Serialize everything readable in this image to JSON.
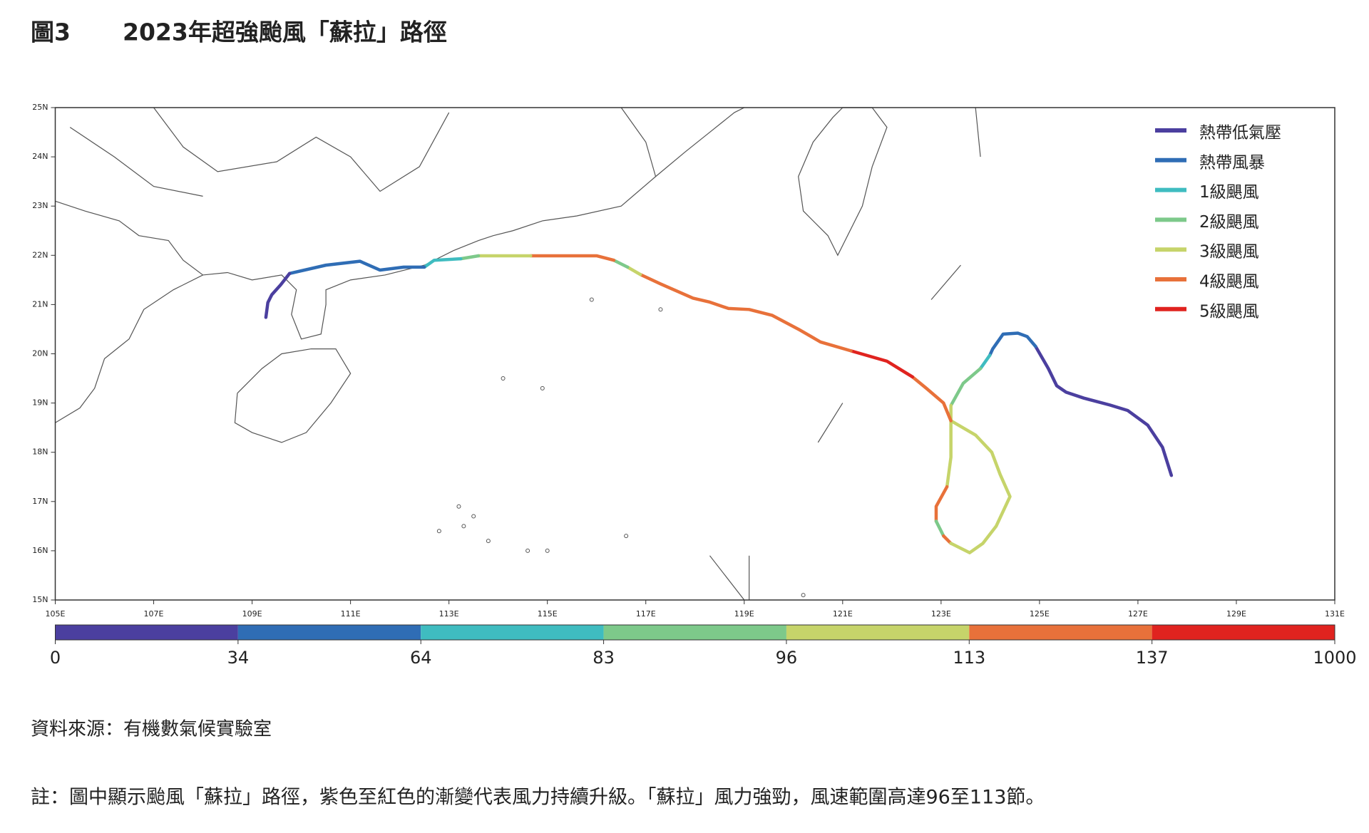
{
  "figure_label": "圖3",
  "title": "2023年超強颱風「蘇拉」路徑",
  "map": {
    "type": "track",
    "xlim": [
      105,
      131
    ],
    "ylim": [
      15,
      25
    ],
    "xticks": [
      {
        "value": 105,
        "label": "105E"
      },
      {
        "value": 107,
        "label": "107E"
      },
      {
        "value": 109,
        "label": "109E"
      },
      {
        "value": 111,
        "label": "111E"
      },
      {
        "value": 113,
        "label": "113E"
      },
      {
        "value": 115,
        "label": "115E"
      },
      {
        "value": 117,
        "label": "117E"
      },
      {
        "value": 119,
        "label": "119E"
      },
      {
        "value": 121,
        "label": "121E"
      },
      {
        "value": 123,
        "label": "123E"
      },
      {
        "value": 125,
        "label": "125E"
      },
      {
        "value": 127,
        "label": "127E"
      },
      {
        "value": 129,
        "label": "129E"
      },
      {
        "value": 131,
        "label": "131E"
      }
    ],
    "yticks": [
      {
        "value": 15,
        "label": "15N"
      },
      {
        "value": 16,
        "label": "16N"
      },
      {
        "value": 17,
        "label": "17N"
      },
      {
        "value": 18,
        "label": "18N"
      },
      {
        "value": 19,
        "label": "19N"
      },
      {
        "value": 20,
        "label": "20N"
      },
      {
        "value": 21,
        "label": "21N"
      },
      {
        "value": 22,
        "label": "22N"
      },
      {
        "value": 23,
        "label": "23N"
      },
      {
        "value": 24,
        "label": "24N"
      },
      {
        "value": 25,
        "label": "25N"
      }
    ],
    "legend": [
      {
        "name": "熱帶低氣壓",
        "color": "#4b3f9f"
      },
      {
        "name": "熱帶風暴",
        "color": "#2f6db5"
      },
      {
        "name": "1級颶風",
        "color": "#3fbcc0"
      },
      {
        "name": "2級颶風",
        "color": "#7dc98a"
      },
      {
        "name": "3級颶風",
        "color": "#c6d46a"
      },
      {
        "name": "4級颶風",
        "color": "#e8713a"
      },
      {
        "name": "5級颶風",
        "color": "#e0231f"
      }
    ],
    "colorbar_ticks": [
      0,
      34,
      64,
      83,
      96,
      113,
      137,
      1000
    ],
    "track": [
      {
        "category": 0,
        "lon": [
          127.68,
          127.5,
          127.2,
          126.79,
          126.43,
          125.9,
          125.54,
          125.35,
          125.18,
          124.92
        ],
        "lat": [
          17.53,
          18.1,
          18.55,
          18.85,
          18.96,
          19.1,
          19.22,
          19.35,
          19.7,
          20.15
        ]
      },
      {
        "category": 1,
        "lon": [
          124.92,
          124.75,
          124.56,
          124.26,
          124.05,
          123.99
        ],
        "lat": [
          20.15,
          20.35,
          20.42,
          20.4,
          20.1,
          19.97
        ]
      },
      {
        "category": 2,
        "lon": [
          123.99,
          123.8
        ],
        "lat": [
          19.97,
          19.7
        ]
      },
      {
        "category": 3,
        "lon": [
          123.8,
          123.45,
          123.2
        ],
        "lat": [
          19.7,
          19.4,
          18.95
        ]
      },
      {
        "category": 4,
        "lon": [
          123.2,
          123.2,
          123.2,
          123.12
        ],
        "lat": [
          18.95,
          18.4,
          17.9,
          17.3
        ]
      },
      {
        "category": 5,
        "lon": [
          123.12,
          122.9,
          122.9
        ],
        "lat": [
          17.3,
          16.9,
          16.6
        ]
      },
      {
        "category": 3,
        "lon": [
          122.9,
          123.05
        ],
        "lat": [
          16.6,
          16.3
        ]
      },
      {
        "category": 5,
        "lon": [
          123.05,
          123.2
        ],
        "lat": [
          16.3,
          16.15
        ]
      },
      {
        "category": 4,
        "lon": [
          123.2,
          123.58,
          123.85,
          124.12,
          124.4,
          124.2,
          124.03,
          123.7,
          123.2
        ],
        "lat": [
          16.15,
          15.96,
          16.15,
          16.5,
          17.1,
          17.55,
          18.0,
          18.35,
          18.64
        ]
      },
      {
        "category": 5,
        "lon": [
          123.2,
          123.05,
          122.7,
          122.42
        ],
        "lat": [
          18.64,
          19.0,
          19.3,
          19.53
        ]
      },
      {
        "category": 6,
        "lon": [
          122.42,
          121.9,
          121.17
        ],
        "lat": [
          19.53,
          19.85,
          20.06
        ]
      },
      {
        "category": 5,
        "lon": [
          121.17,
          120.55,
          120.1,
          119.57,
          119.1,
          118.68,
          118.3,
          117.96,
          117.3,
          116.89
        ],
        "lat": [
          20.06,
          20.24,
          20.5,
          20.78,
          20.9,
          20.92,
          21.05,
          21.13,
          21.42,
          21.61
        ]
      },
      {
        "category": 4,
        "lon": [
          116.89,
          116.63
        ],
        "lat": [
          21.61,
          21.76
        ]
      },
      {
        "category": 3,
        "lon": [
          116.63,
          116.35
        ],
        "lat": [
          21.76,
          21.9
        ]
      },
      {
        "category": 5,
        "lon": [
          116.35,
          116.0,
          114.66
        ],
        "lat": [
          21.9,
          21.99,
          21.99
        ]
      },
      {
        "category": 4,
        "lon": [
          114.66,
          113.6
        ],
        "lat": [
          21.99,
          21.99
        ]
      },
      {
        "category": 3,
        "lon": [
          113.6,
          113.24
        ],
        "lat": [
          21.99,
          21.93
        ]
      },
      {
        "category": 2,
        "lon": [
          113.24,
          112.7,
          112.5
        ],
        "lat": [
          21.93,
          21.9,
          21.76
        ]
      },
      {
        "category": 1,
        "lon": [
          112.5,
          112.08,
          111.6,
          111.19,
          110.5,
          109.76
        ],
        "lat": [
          21.76,
          21.76,
          21.7,
          21.88,
          21.8,
          21.63
        ]
      },
      {
        "category": 0,
        "lon": [
          109.76,
          109.58,
          109.4,
          109.32,
          109.28
        ],
        "lat": [
          21.63,
          21.4,
          21.2,
          21.04,
          20.74
        ]
      }
    ]
  },
  "source": "資料來源：有機數氣候實驗室",
  "note": "註：圖中顯示颱風「蘇拉」路徑，紫色至紅色的漸變代表風力持續升級。「蘇拉」風力強勁，風速範圍高達96至113節。"
}
